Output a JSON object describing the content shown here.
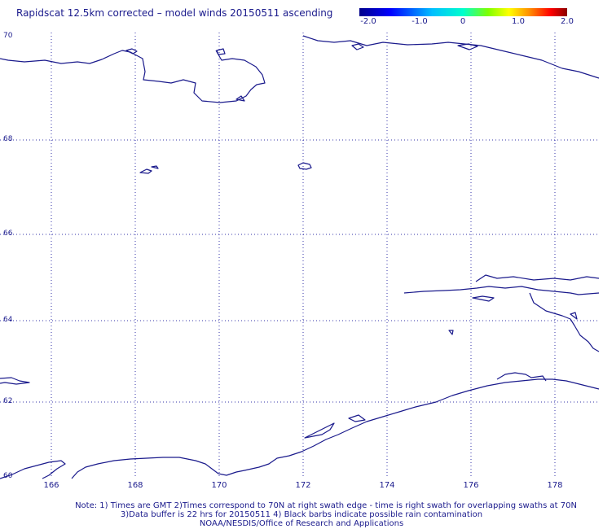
{
  "title": "Rapidscat 12.5km corrected – model winds 20150511 ascending",
  "colorbar": {
    "labels": [
      "-2.0",
      "-1.0",
      "0",
      "1.0",
      "2.0"
    ],
    "colors": [
      "#00008b",
      "#0000ff",
      "#00bfff",
      "#00ffcc",
      "#7fff00",
      "#ffff00",
      "#ff8c00",
      "#ff0000",
      "#8b0000"
    ]
  },
  "lat_labels": [
    "70",
    "68",
    "66",
    "64",
    "62",
    "60"
  ],
  "lon_labels": [
    "166",
    "168",
    "170",
    "172",
    "174",
    "176",
    "178"
  ],
  "notes": {
    "line1": "Note: 1) Times are GMT  2)Times correspond to 70N at right swath edge - time is right swath for overlapping swaths at 70N",
    "line2": "3)Data buffer is 22 hrs for 20150511  4) Black barbs indicate possible rain contamination",
    "line3": "NOAA/NESDIS/Office of Research and Applications"
  },
  "colors": {
    "coast": "#1a1a8c",
    "grid": "#1a1a8c"
  }
}
